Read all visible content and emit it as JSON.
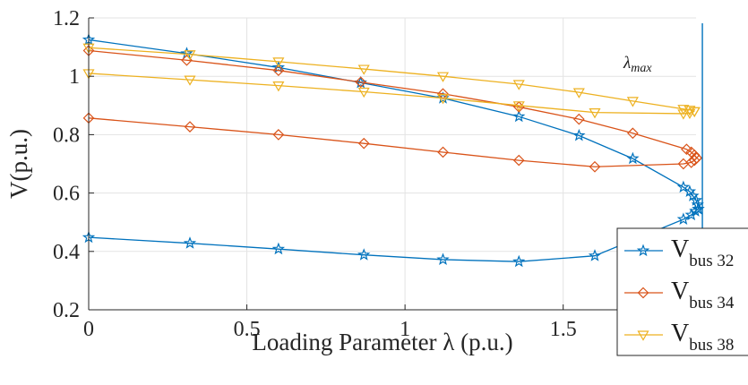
{
  "chart_data": {
    "type": "line",
    "title": "",
    "xlabel": "Loading Parameter λ (p.u.)",
    "ylabel": "V(p.u.)",
    "xlim": [
      0,
      1.92
    ],
    "ylim": [
      0.2,
      1.2
    ],
    "x_ticks": [
      "0",
      "0.5",
      "1",
      "1.5"
    ],
    "y_ticks": [
      "0.2",
      "0.4",
      "0.6",
      "0.8",
      "1",
      "1.2"
    ],
    "grid": true,
    "legend_position": "lower-right",
    "annotation": {
      "text": "λmax",
      "base": "λ",
      "sub": "max",
      "x": 1.94
    },
    "series": [
      {
        "name": "V bus 32",
        "base": "V",
        "sub": "bus 32",
        "color": "#0072BD",
        "marker": "star",
        "upper": [
          [
            0.0,
            1.125
          ],
          [
            0.31,
            1.078
          ],
          [
            0.6,
            1.03
          ],
          [
            0.86,
            0.978
          ],
          [
            1.12,
            0.925
          ],
          [
            1.36,
            0.862
          ],
          [
            1.55,
            0.797
          ],
          [
            1.72,
            0.718
          ],
          [
            1.88,
            0.62
          ],
          [
            1.9,
            0.605
          ],
          [
            1.91,
            0.59
          ],
          [
            1.92,
            0.575
          ],
          [
            1.925,
            0.56
          ],
          [
            1.927,
            0.545
          ]
        ],
        "lower": [
          [
            0.0,
            0.448
          ],
          [
            0.32,
            0.428
          ],
          [
            0.6,
            0.408
          ],
          [
            0.87,
            0.388
          ],
          [
            1.12,
            0.372
          ],
          [
            1.36,
            0.365
          ],
          [
            1.6,
            0.385
          ],
          [
            1.88,
            0.51
          ],
          [
            1.905,
            0.525
          ],
          [
            1.918,
            0.538
          ],
          [
            1.927,
            0.545
          ]
        ]
      },
      {
        "name": "V bus 34",
        "base": "V",
        "sub": "bus 34",
        "color": "#D95319",
        "marker": "diamond",
        "upper": [
          [
            0.0,
            1.088
          ],
          [
            0.31,
            1.055
          ],
          [
            0.6,
            1.02
          ],
          [
            0.86,
            0.98
          ],
          [
            1.12,
            0.94
          ],
          [
            1.36,
            0.895
          ],
          [
            1.55,
            0.853
          ],
          [
            1.72,
            0.805
          ],
          [
            1.89,
            0.75
          ],
          [
            1.905,
            0.74
          ],
          [
            1.915,
            0.73
          ],
          [
            1.922,
            0.72
          ]
        ],
        "lower": [
          [
            0.0,
            0.857
          ],
          [
            0.32,
            0.827
          ],
          [
            0.6,
            0.8
          ],
          [
            0.87,
            0.77
          ],
          [
            1.12,
            0.74
          ],
          [
            1.36,
            0.712
          ],
          [
            1.6,
            0.69
          ],
          [
            1.88,
            0.7
          ],
          [
            1.905,
            0.705
          ],
          [
            1.915,
            0.712
          ],
          [
            1.922,
            0.72
          ]
        ]
      },
      {
        "name": "V bus 38",
        "base": "V",
        "sub": "bus 38",
        "color": "#EDB120",
        "marker": "triangle-down",
        "upper": [
          [
            0.0,
            1.098
          ],
          [
            0.32,
            1.075
          ],
          [
            0.6,
            1.05
          ],
          [
            0.87,
            1.025
          ],
          [
            1.12,
            1.0
          ],
          [
            1.36,
            0.973
          ],
          [
            1.55,
            0.945
          ],
          [
            1.72,
            0.915
          ],
          [
            1.88,
            0.888
          ],
          [
            1.9,
            0.885
          ],
          [
            1.915,
            0.88
          ]
        ],
        "lower": [
          [
            0.0,
            1.01
          ],
          [
            0.32,
            0.988
          ],
          [
            0.6,
            0.968
          ],
          [
            0.87,
            0.947
          ],
          [
            1.12,
            0.925
          ],
          [
            1.36,
            0.9
          ],
          [
            1.6,
            0.876
          ],
          [
            1.88,
            0.872
          ],
          [
            1.9,
            0.874
          ],
          [
            1.915,
            0.88
          ]
        ]
      }
    ]
  }
}
